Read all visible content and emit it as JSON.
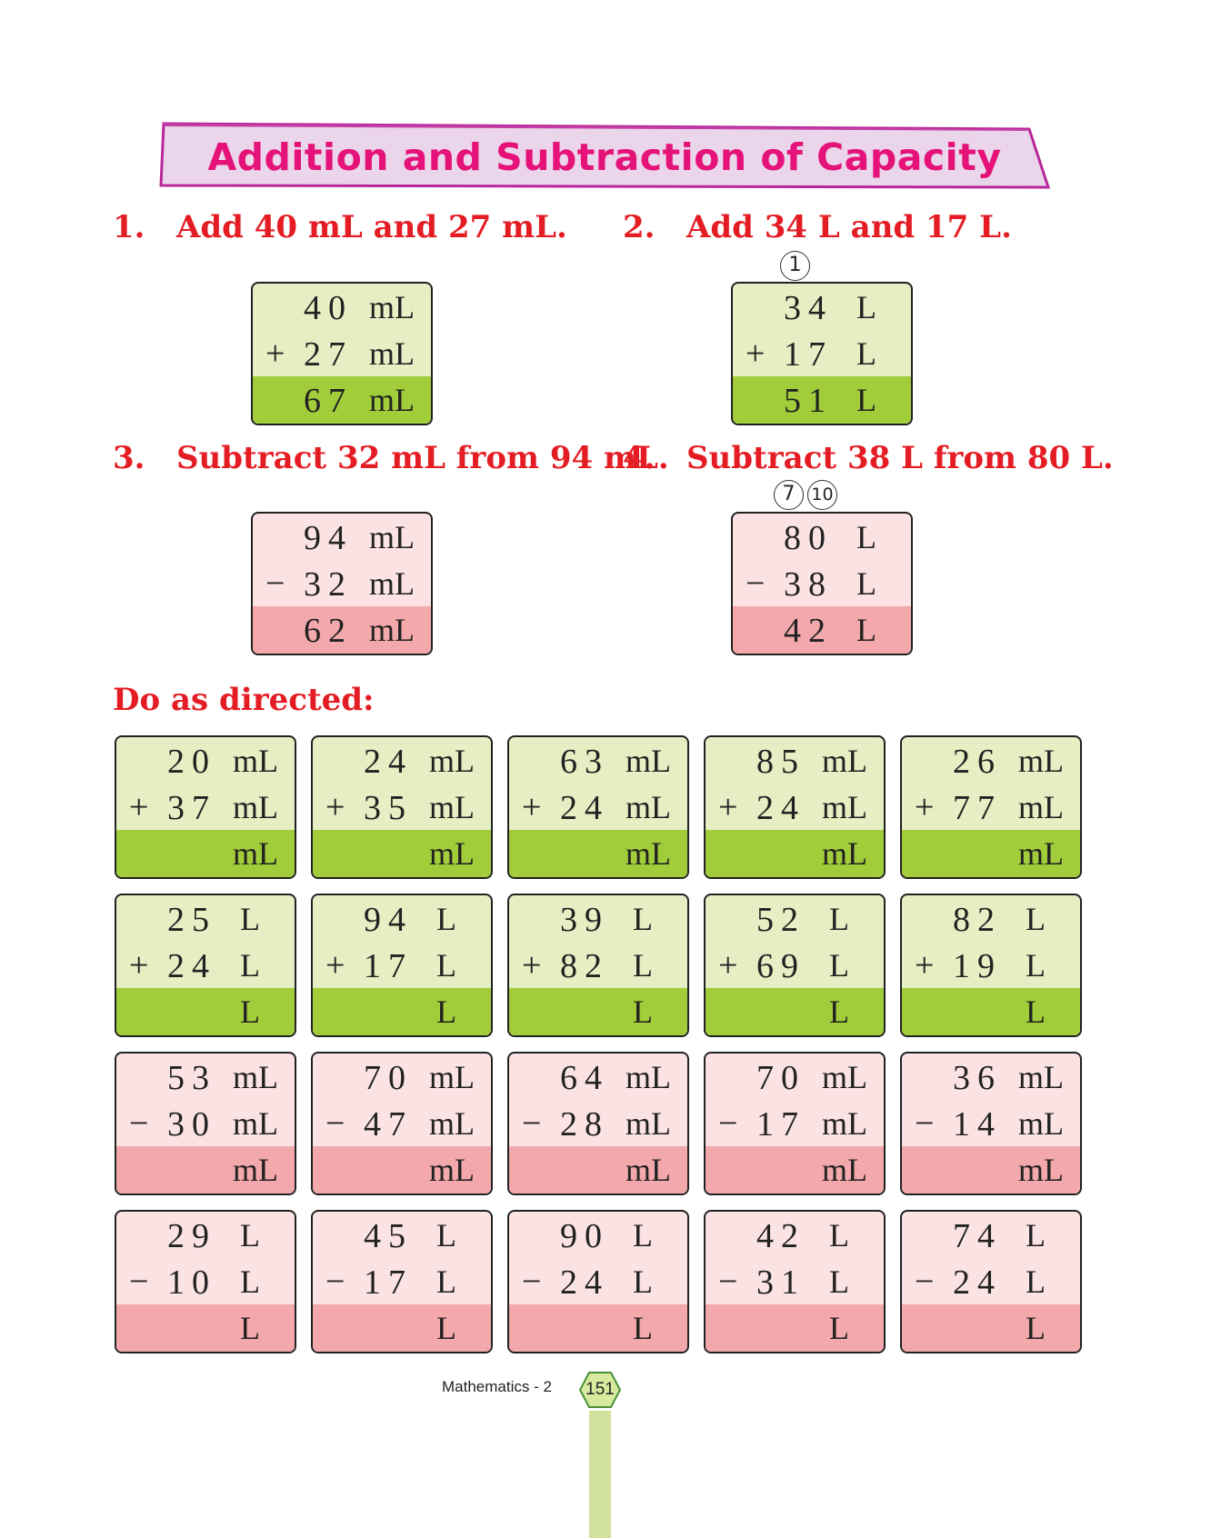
{
  "title": "Addition and Subtraction of Capacity",
  "examples": [
    {
      "number": "1.",
      "question": "Add 40 mL and 27 mL.",
      "op": "+",
      "top": "40",
      "bottom": "27",
      "result": "67",
      "unit": "mL",
      "carry": []
    },
    {
      "number": "2.",
      "question": "Add 34 L and 17 L.",
      "op": "+",
      "top": "34",
      "bottom": "17",
      "result": "51",
      "unit": "L",
      "carry": [
        "1"
      ]
    },
    {
      "number": "3.",
      "question": "Subtract 32 mL from 94 mL.",
      "op": "−",
      "top": "94",
      "bottom": "32",
      "result": "62",
      "unit": "mL",
      "carry": []
    },
    {
      "number": "4.",
      "question": "Subtract 38 L from 80 L.",
      "op": "−",
      "top": "80",
      "bottom": "38",
      "result": "42",
      "unit": "L",
      "carry": [
        "7",
        "10"
      ]
    }
  ],
  "exercise_heading": "Do as directed:",
  "exercises": [
    {
      "op": "+",
      "top": "20",
      "bottom": "37",
      "unit": "mL"
    },
    {
      "op": "+",
      "top": "24",
      "bottom": "35",
      "unit": "mL"
    },
    {
      "op": "+",
      "top": "63",
      "bottom": "24",
      "unit": "mL"
    },
    {
      "op": "+",
      "top": "85",
      "bottom": "24",
      "unit": "mL"
    },
    {
      "op": "+",
      "top": "26",
      "bottom": "77",
      "unit": "mL"
    },
    {
      "op": "+",
      "top": "25",
      "bottom": "24",
      "unit": "L"
    },
    {
      "op": "+",
      "top": "94",
      "bottom": "17",
      "unit": "L"
    },
    {
      "op": "+",
      "top": "39",
      "bottom": "82",
      "unit": "L"
    },
    {
      "op": "+",
      "top": "52",
      "bottom": "69",
      "unit": "L"
    },
    {
      "op": "+",
      "top": "82",
      "bottom": "19",
      "unit": "L"
    },
    {
      "op": "−",
      "top": "53",
      "bottom": "30",
      "unit": "mL"
    },
    {
      "op": "−",
      "top": "70",
      "bottom": "47",
      "unit": "mL"
    },
    {
      "op": "−",
      "top": "64",
      "bottom": "28",
      "unit": "mL"
    },
    {
      "op": "−",
      "top": "70",
      "bottom": "17",
      "unit": "mL"
    },
    {
      "op": "−",
      "top": "36",
      "bottom": "14",
      "unit": "mL"
    },
    {
      "op": "−",
      "top": "29",
      "bottom": "10",
      "unit": "L"
    },
    {
      "op": "−",
      "top": "45",
      "bottom": "17",
      "unit": "L"
    },
    {
      "op": "−",
      "top": "90",
      "bottom": "24",
      "unit": "L"
    },
    {
      "op": "−",
      "top": "42",
      "bottom": "31",
      "unit": "L"
    },
    {
      "op": "−",
      "top": "74",
      "bottom": "24",
      "unit": "L"
    }
  ],
  "footer": {
    "book": "Mathematics - 2",
    "page": "151"
  },
  "colors": {
    "title": "#e5127a",
    "question": "#e41d24",
    "add_light": "#e5efc3",
    "add_dark": "#a2cd3a",
    "sub_light": "#fbe3e4",
    "sub_dark": "#f3a8ab"
  }
}
